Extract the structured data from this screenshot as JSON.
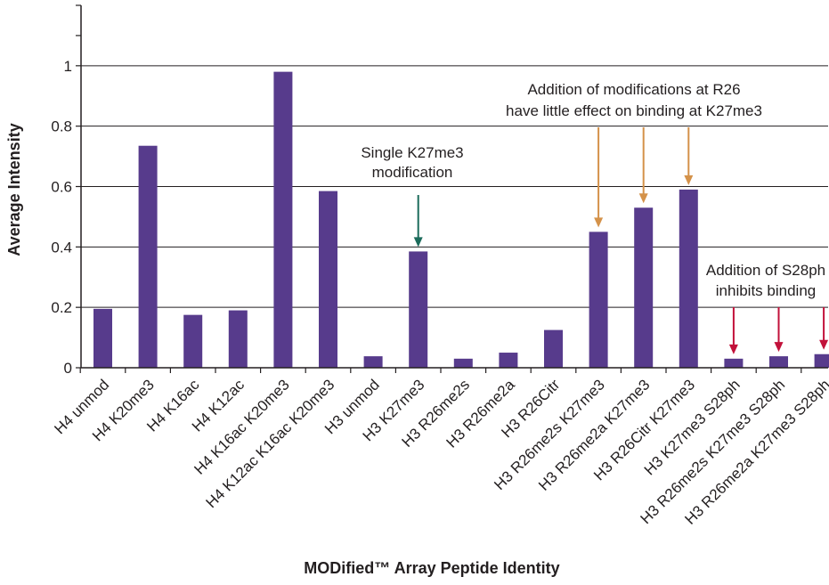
{
  "chart_data": {
    "type": "bar",
    "xlabel": "MODified™ Array Peptide Identity",
    "ylabel": "Average Intensity",
    "ylim": [
      0,
      1.2
    ],
    "yticks": [
      0,
      0.2,
      0.4,
      0.6,
      0.8,
      1
    ],
    "ytick_labels": [
      "0",
      "0.2",
      "0.4",
      "0.6",
      "0.8",
      "1"
    ],
    "grid": true,
    "legend": "none",
    "bar_color": "#573b8c",
    "categories": [
      "H4 unmod",
      "H4 K20me3",
      "H4 K16ac",
      "H4 K12ac",
      "H4 K16ac K20me3",
      "H4 K12ac K16ac K20me3",
      "H3 unmod",
      "H3 K27me3",
      "H3 R26me2s",
      "H3 R26me2a",
      "H3 R26Citr",
      "H3 R26me2s K27me3",
      "H3 R26me2a K27me3",
      "H3 R26Citr K27me3",
      "H3 K27me3 S28ph",
      "H3 R26me2s K27me3 S28ph",
      "H3 R26me2a K27me3 S28ph"
    ],
    "values": [
      0.195,
      0.735,
      0.175,
      0.19,
      0.98,
      0.585,
      0.038,
      0.385,
      0.03,
      0.05,
      0.125,
      0.45,
      0.53,
      0.59,
      0.03,
      0.038,
      0.045
    ],
    "annotations": [
      {
        "lines": [
          "Single K27me3",
          "modification"
        ],
        "targets": [
          7
        ],
        "color": "#1b6b5b"
      },
      {
        "lines": [
          "Addition of modifications at R26",
          "have little effect on binding at K27me3"
        ],
        "targets": [
          11,
          12,
          13
        ],
        "color": "#d4924a"
      },
      {
        "lines": [
          "Addition of S28ph",
          "inhibits binding"
        ],
        "targets": [
          14,
          15,
          16
        ],
        "color": "#c2113a"
      }
    ]
  }
}
